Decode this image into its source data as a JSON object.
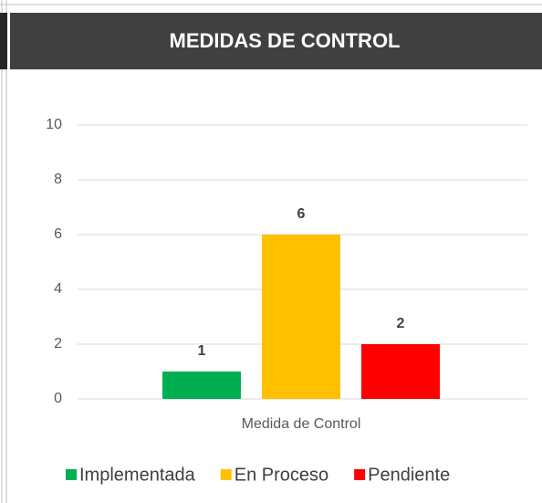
{
  "chart_data": {
    "type": "bar",
    "title": "MEDIDAS DE CONTROL",
    "categories": [
      "Medida de Control"
    ],
    "series": [
      {
        "name": "Implementada",
        "color": "#00b050",
        "values": [
          1
        ]
      },
      {
        "name": "En Proceso",
        "color": "#ffc000",
        "values": [
          6
        ]
      },
      {
        "name": "Pendiente",
        "color": "#ff0000",
        "values": [
          2
        ]
      }
    ],
    "ylim": [
      0,
      10
    ],
    "yticks": [
      0,
      2,
      4,
      6,
      8,
      10
    ],
    "grid": true,
    "legend": "bottom"
  }
}
